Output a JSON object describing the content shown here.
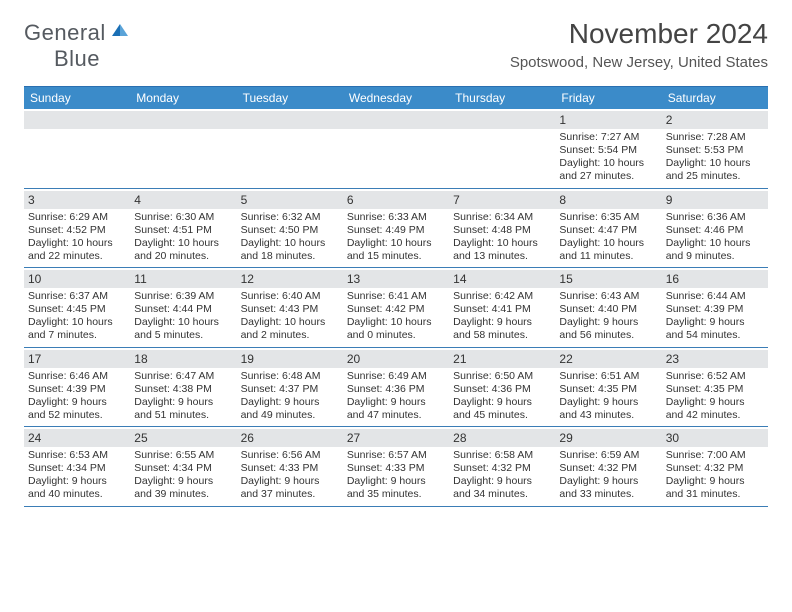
{
  "logo": {
    "textGeneral": "General",
    "textBlue": "Blue",
    "iconName": "triangle-logo-icon",
    "iconColor": "#1a6fb5"
  },
  "title": "November 2024",
  "location": "Spotswood, New Jersey, United States",
  "colors": {
    "headerBg": "#3b8bc9",
    "headerText": "#ffffff",
    "weekBorder": "#3b7db6",
    "dayNumBg": "#e3e5e7",
    "textColor": "#333333",
    "pageBg": "#ffffff"
  },
  "typography": {
    "titleFontSize": 28,
    "locationFontSize": 15,
    "dayHeaderFontSize": 12,
    "dayNumFontSize": 12,
    "bodyFontSize": 10.5
  },
  "calendar": {
    "type": "table",
    "columns": [
      "Sunday",
      "Monday",
      "Tuesday",
      "Wednesday",
      "Thursday",
      "Friday",
      "Saturday"
    ],
    "weeks": [
      [
        null,
        null,
        null,
        null,
        null,
        {
          "day": "1",
          "sunrise": "Sunrise: 7:27 AM",
          "sunset": "Sunset: 5:54 PM",
          "daylight1": "Daylight: 10 hours",
          "daylight2": "and 27 minutes."
        },
        {
          "day": "2",
          "sunrise": "Sunrise: 7:28 AM",
          "sunset": "Sunset: 5:53 PM",
          "daylight1": "Daylight: 10 hours",
          "daylight2": "and 25 minutes."
        }
      ],
      [
        {
          "day": "3",
          "sunrise": "Sunrise: 6:29 AM",
          "sunset": "Sunset: 4:52 PM",
          "daylight1": "Daylight: 10 hours",
          "daylight2": "and 22 minutes."
        },
        {
          "day": "4",
          "sunrise": "Sunrise: 6:30 AM",
          "sunset": "Sunset: 4:51 PM",
          "daylight1": "Daylight: 10 hours",
          "daylight2": "and 20 minutes."
        },
        {
          "day": "5",
          "sunrise": "Sunrise: 6:32 AM",
          "sunset": "Sunset: 4:50 PM",
          "daylight1": "Daylight: 10 hours",
          "daylight2": "and 18 minutes."
        },
        {
          "day": "6",
          "sunrise": "Sunrise: 6:33 AM",
          "sunset": "Sunset: 4:49 PM",
          "daylight1": "Daylight: 10 hours",
          "daylight2": "and 15 minutes."
        },
        {
          "day": "7",
          "sunrise": "Sunrise: 6:34 AM",
          "sunset": "Sunset: 4:48 PM",
          "daylight1": "Daylight: 10 hours",
          "daylight2": "and 13 minutes."
        },
        {
          "day": "8",
          "sunrise": "Sunrise: 6:35 AM",
          "sunset": "Sunset: 4:47 PM",
          "daylight1": "Daylight: 10 hours",
          "daylight2": "and 11 minutes."
        },
        {
          "day": "9",
          "sunrise": "Sunrise: 6:36 AM",
          "sunset": "Sunset: 4:46 PM",
          "daylight1": "Daylight: 10 hours",
          "daylight2": "and 9 minutes."
        }
      ],
      [
        {
          "day": "10",
          "sunrise": "Sunrise: 6:37 AM",
          "sunset": "Sunset: 4:45 PM",
          "daylight1": "Daylight: 10 hours",
          "daylight2": "and 7 minutes."
        },
        {
          "day": "11",
          "sunrise": "Sunrise: 6:39 AM",
          "sunset": "Sunset: 4:44 PM",
          "daylight1": "Daylight: 10 hours",
          "daylight2": "and 5 minutes."
        },
        {
          "day": "12",
          "sunrise": "Sunrise: 6:40 AM",
          "sunset": "Sunset: 4:43 PM",
          "daylight1": "Daylight: 10 hours",
          "daylight2": "and 2 minutes."
        },
        {
          "day": "13",
          "sunrise": "Sunrise: 6:41 AM",
          "sunset": "Sunset: 4:42 PM",
          "daylight1": "Daylight: 10 hours",
          "daylight2": "and 0 minutes."
        },
        {
          "day": "14",
          "sunrise": "Sunrise: 6:42 AM",
          "sunset": "Sunset: 4:41 PM",
          "daylight1": "Daylight: 9 hours",
          "daylight2": "and 58 minutes."
        },
        {
          "day": "15",
          "sunrise": "Sunrise: 6:43 AM",
          "sunset": "Sunset: 4:40 PM",
          "daylight1": "Daylight: 9 hours",
          "daylight2": "and 56 minutes."
        },
        {
          "day": "16",
          "sunrise": "Sunrise: 6:44 AM",
          "sunset": "Sunset: 4:39 PM",
          "daylight1": "Daylight: 9 hours",
          "daylight2": "and 54 minutes."
        }
      ],
      [
        {
          "day": "17",
          "sunrise": "Sunrise: 6:46 AM",
          "sunset": "Sunset: 4:39 PM",
          "daylight1": "Daylight: 9 hours",
          "daylight2": "and 52 minutes."
        },
        {
          "day": "18",
          "sunrise": "Sunrise: 6:47 AM",
          "sunset": "Sunset: 4:38 PM",
          "daylight1": "Daylight: 9 hours",
          "daylight2": "and 51 minutes."
        },
        {
          "day": "19",
          "sunrise": "Sunrise: 6:48 AM",
          "sunset": "Sunset: 4:37 PM",
          "daylight1": "Daylight: 9 hours",
          "daylight2": "and 49 minutes."
        },
        {
          "day": "20",
          "sunrise": "Sunrise: 6:49 AM",
          "sunset": "Sunset: 4:36 PM",
          "daylight1": "Daylight: 9 hours",
          "daylight2": "and 47 minutes."
        },
        {
          "day": "21",
          "sunrise": "Sunrise: 6:50 AM",
          "sunset": "Sunset: 4:36 PM",
          "daylight1": "Daylight: 9 hours",
          "daylight2": "and 45 minutes."
        },
        {
          "day": "22",
          "sunrise": "Sunrise: 6:51 AM",
          "sunset": "Sunset: 4:35 PM",
          "daylight1": "Daylight: 9 hours",
          "daylight2": "and 43 minutes."
        },
        {
          "day": "23",
          "sunrise": "Sunrise: 6:52 AM",
          "sunset": "Sunset: 4:35 PM",
          "daylight1": "Daylight: 9 hours",
          "daylight2": "and 42 minutes."
        }
      ],
      [
        {
          "day": "24",
          "sunrise": "Sunrise: 6:53 AM",
          "sunset": "Sunset: 4:34 PM",
          "daylight1": "Daylight: 9 hours",
          "daylight2": "and 40 minutes."
        },
        {
          "day": "25",
          "sunrise": "Sunrise: 6:55 AM",
          "sunset": "Sunset: 4:34 PM",
          "daylight1": "Daylight: 9 hours",
          "daylight2": "and 39 minutes."
        },
        {
          "day": "26",
          "sunrise": "Sunrise: 6:56 AM",
          "sunset": "Sunset: 4:33 PM",
          "daylight1": "Daylight: 9 hours",
          "daylight2": "and 37 minutes."
        },
        {
          "day": "27",
          "sunrise": "Sunrise: 6:57 AM",
          "sunset": "Sunset: 4:33 PM",
          "daylight1": "Daylight: 9 hours",
          "daylight2": "and 35 minutes."
        },
        {
          "day": "28",
          "sunrise": "Sunrise: 6:58 AM",
          "sunset": "Sunset: 4:32 PM",
          "daylight1": "Daylight: 9 hours",
          "daylight2": "and 34 minutes."
        },
        {
          "day": "29",
          "sunrise": "Sunrise: 6:59 AM",
          "sunset": "Sunset: 4:32 PM",
          "daylight1": "Daylight: 9 hours",
          "daylight2": "and 33 minutes."
        },
        {
          "day": "30",
          "sunrise": "Sunrise: 7:00 AM",
          "sunset": "Sunset: 4:32 PM",
          "daylight1": "Daylight: 9 hours",
          "daylight2": "and 31 minutes."
        }
      ]
    ]
  }
}
